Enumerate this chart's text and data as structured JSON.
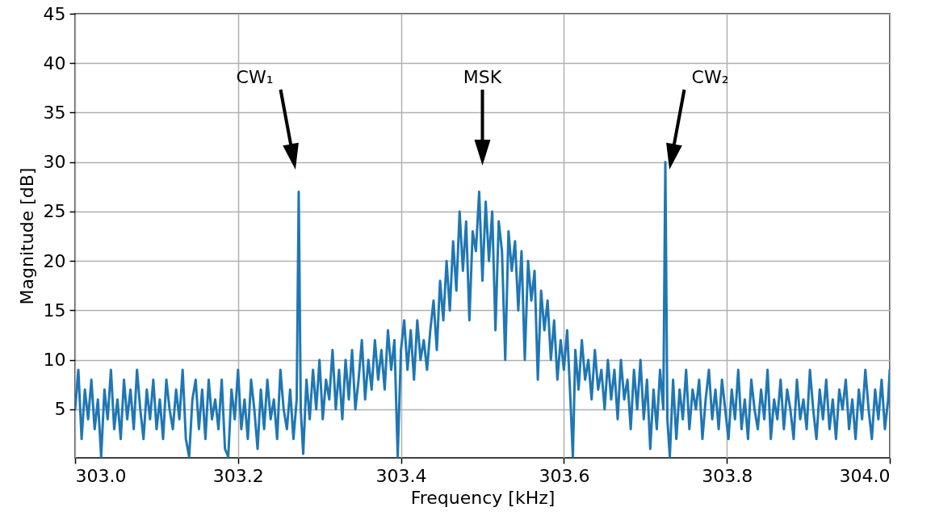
{
  "chart_data": {
    "type": "line",
    "xlabel": "Frequency [kHz]",
    "ylabel": "Magnitude [dB]",
    "xlim": [
      303.0,
      304.0
    ],
    "ylim": [
      0.1,
      45
    ],
    "xticks": [
      {
        "value": 303,
        "label": "303.0"
      },
      {
        "value": 303.2,
        "label": "303.2"
      },
      {
        "value": 303.4,
        "label": "303.4"
      },
      {
        "value": 303.6,
        "label": "303.6"
      },
      {
        "value": 303.8,
        "label": "303.8"
      },
      {
        "value": 304,
        "label": "304.0"
      }
    ],
    "yticks": [
      5,
      10,
      15,
      20,
      25,
      30,
      35,
      40,
      45
    ],
    "grid": true,
    "line_style": "solid",
    "annotations": [
      "CW₁",
      "MSK",
      "CW₂"
    ],
    "series": [
      {
        "color": "#1f77b4",
        "x": [
          303.0,
          303.004,
          303.008,
          303.012,
          303.016,
          303.02,
          303.024,
          303.028,
          303.032,
          303.036,
          303.04,
          303.044,
          303.048,
          303.052,
          303.056,
          303.06,
          303.064,
          303.068,
          303.072,
          303.076,
          303.08,
          303.084,
          303.088,
          303.092,
          303.096,
          303.1,
          303.104,
          303.108,
          303.112,
          303.116,
          303.12,
          303.124,
          303.128,
          303.132,
          303.136,
          303.14,
          303.144,
          303.148,
          303.152,
          303.156,
          303.16,
          303.164,
          303.168,
          303.172,
          303.176,
          303.18,
          303.184,
          303.188,
          303.192,
          303.196,
          303.2,
          303.204,
          303.208,
          303.212,
          303.216,
          303.22,
          303.224,
          303.228,
          303.232,
          303.236,
          303.24,
          303.244,
          303.248,
          303.252,
          303.256,
          303.26,
          303.264,
          303.268,
          303.272,
          303.2745,
          303.277,
          303.28,
          303.284,
          303.288,
          303.292,
          303.296,
          303.3,
          303.304,
          303.308,
          303.312,
          303.316,
          303.32,
          303.324,
          303.328,
          303.332,
          303.336,
          303.34,
          303.344,
          303.348,
          303.352,
          303.356,
          303.36,
          303.364,
          303.368,
          303.372,
          303.376,
          303.38,
          303.384,
          303.388,
          303.392,
          303.396,
          303.4,
          303.404,
          303.408,
          303.412,
          303.416,
          303.42,
          303.424,
          303.428,
          303.432,
          303.436,
          303.44,
          303.444,
          303.448,
          303.452,
          303.456,
          303.46,
          303.464,
          303.468,
          303.472,
          303.476,
          303.48,
          303.484,
          303.488,
          303.492,
          303.496,
          303.5,
          303.504,
          303.508,
          303.512,
          303.516,
          303.52,
          303.524,
          303.528,
          303.532,
          303.536,
          303.54,
          303.544,
          303.548,
          303.552,
          303.556,
          303.56,
          303.564,
          303.568,
          303.572,
          303.576,
          303.58,
          303.584,
          303.588,
          303.592,
          303.596,
          303.6,
          303.604,
          303.608,
          303.611,
          303.614,
          303.618,
          303.622,
          303.626,
          303.63,
          303.634,
          303.638,
          303.642,
          303.646,
          303.65,
          303.654,
          303.658,
          303.662,
          303.666,
          303.67,
          303.674,
          303.678,
          303.682,
          303.686,
          303.69,
          303.694,
          303.698,
          303.702,
          303.706,
          303.71,
          303.714,
          303.718,
          303.722,
          303.7245,
          303.727,
          303.73,
          303.734,
          303.738,
          303.742,
          303.746,
          303.75,
          303.754,
          303.758,
          303.762,
          303.766,
          303.77,
          303.774,
          303.778,
          303.782,
          303.786,
          303.79,
          303.794,
          303.798,
          303.802,
          303.806,
          303.81,
          303.814,
          303.818,
          303.822,
          303.826,
          303.83,
          303.834,
          303.838,
          303.842,
          303.846,
          303.85,
          303.854,
          303.858,
          303.862,
          303.866,
          303.87,
          303.874,
          303.878,
          303.882,
          303.886,
          303.89,
          303.894,
          303.898,
          303.902,
          303.906,
          303.91,
          303.914,
          303.918,
          303.922,
          303.926,
          303.93,
          303.934,
          303.938,
          303.942,
          303.946,
          303.95,
          303.954,
          303.958,
          303.962,
          303.966,
          303.97,
          303.974,
          303.978,
          303.982,
          303.986,
          303.99,
          303.994,
          303.998,
          304.0
        ],
        "values": [
          5,
          9,
          2,
          7,
          4,
          8,
          3,
          6,
          0.2,
          7,
          4,
          9,
          3,
          6,
          2,
          8,
          4,
          7,
          3,
          9,
          5,
          2,
          7,
          4,
          8,
          3,
          6,
          2,
          8,
          5,
          3,
          7,
          4,
          9,
          2,
          0.2,
          6,
          8,
          3,
          7,
          2,
          8,
          4,
          6,
          3,
          8,
          1,
          0.2,
          7,
          4,
          9,
          3,
          6,
          2,
          8,
          5,
          1,
          7,
          3,
          8,
          4,
          6,
          2,
          9,
          5,
          3,
          7,
          2,
          6,
          27,
          5,
          0.5,
          8,
          4,
          9,
          5,
          10,
          4,
          8,
          6,
          11,
          5,
          9,
          4,
          10,
          6,
          11,
          5,
          8,
          12,
          6,
          10,
          7,
          12,
          8,
          11,
          7,
          13,
          9,
          12,
          0.2,
          11,
          14,
          9,
          13,
          8,
          14,
          10,
          12,
          9,
          13,
          16,
          11,
          18,
          14,
          20,
          15,
          22,
          17,
          25,
          19,
          24,
          14,
          23,
          21,
          27,
          18,
          26,
          20,
          25,
          13,
          24,
          21,
          10,
          23,
          19,
          22,
          15,
          21,
          10,
          20,
          16,
          19,
          8,
          17,
          13,
          16,
          10,
          14,
          8,
          12,
          9,
          13,
          6,
          0.2,
          11,
          7,
          12,
          8,
          10,
          6,
          11,
          7,
          9,
          5,
          10,
          6,
          9,
          4,
          10,
          6,
          8,
          3,
          9,
          5,
          10,
          4,
          8,
          1,
          7,
          3,
          9,
          5,
          30,
          4,
          0.2,
          8,
          2,
          7,
          4,
          9,
          3,
          7,
          5,
          8,
          2,
          6,
          9,
          4,
          7,
          3,
          8,
          5,
          2,
          7,
          4,
          9,
          3,
          6,
          2,
          8,
          5,
          3,
          7,
          4,
          9,
          2,
          6,
          4,
          8,
          3,
          7,
          5,
          2,
          8,
          4,
          6,
          3,
          9,
          5,
          2,
          7,
          4,
          8,
          3,
          6,
          2,
          7,
          5,
          8,
          3,
          6,
          2,
          7,
          4,
          9,
          5,
          2,
          7,
          4,
          8,
          3,
          6,
          9
        ]
      }
    ]
  }
}
